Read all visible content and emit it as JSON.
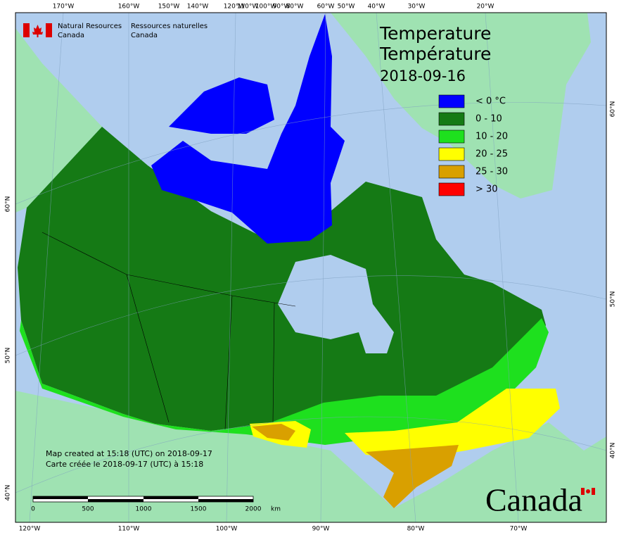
{
  "agency": {
    "en_line1": "Natural Resources",
    "en_line2": "Canada",
    "fr_line1": "Ressources naturelles",
    "fr_line2": "Canada"
  },
  "title": {
    "en": "Temperature",
    "fr": "Température",
    "date": "2018-09-16"
  },
  "legend": [
    {
      "label": "< 0 °C",
      "color": "#0000ff"
    },
    {
      "label": "0 - 10",
      "color": "#157a15"
    },
    {
      "label": "10 - 20",
      "color": "#1ee01e"
    },
    {
      "label": "20 - 25",
      "color": "#ffff00"
    },
    {
      "label": "25 - 30",
      "color": "#d9a000"
    },
    {
      "label": "> 30",
      "color": "#ff0000"
    }
  ],
  "notes": {
    "en": "Map created at 15:18 (UTC) on 2018-09-17",
    "fr": "Carte créée le 2018-09-17 (UTC) à 15:18"
  },
  "scale_bar": {
    "labels": [
      "0",
      "500",
      "1000",
      "1500",
      "2000"
    ],
    "unit": "km"
  },
  "graticule": {
    "top": [
      "170°W",
      "160°W",
      "150°W",
      "140°W",
      "120°W",
      "110°W",
      "100°W",
      "90°W",
      "80°W",
      "60°W",
      "50°W",
      "40°W",
      "30°W",
      "20°W"
    ],
    "bottom": [
      "120°W",
      "110°W",
      "100°W",
      "90°W",
      "80°W",
      "70°W"
    ],
    "left": [
      "60°N",
      "50°N",
      "40°N"
    ],
    "right": [
      "60°N",
      "50°N",
      "40°N"
    ]
  },
  "wordmark": "Canada"
}
